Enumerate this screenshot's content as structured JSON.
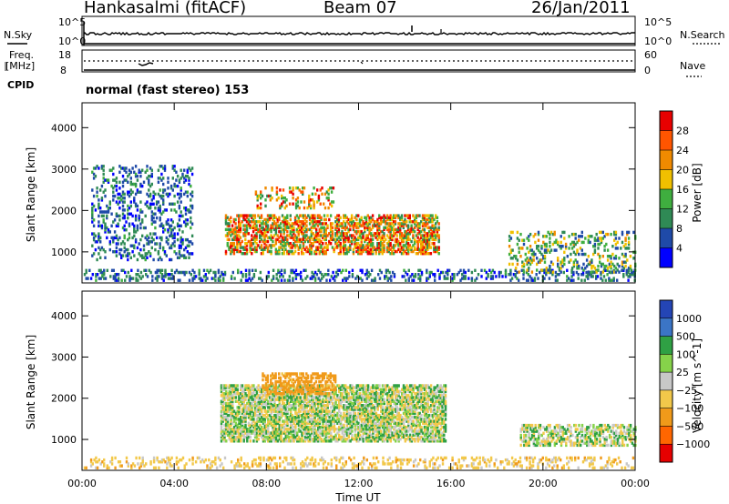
{
  "header": {
    "title": "Hankasalmi (fitACF)",
    "beam": "Beam 07",
    "date": "26/Jan/2011"
  },
  "noise_panel": {
    "left_label": "N.Sky",
    "right_label": "N.Search",
    "ticks_left": [
      "10^5",
      "10^0"
    ],
    "ticks_right": [
      "10^5",
      "10^0"
    ]
  },
  "freq_panel": {
    "left_label_line1": "Freq.",
    "left_label_line2": "[MHz]",
    "ticks_left": [
      "18",
      "8"
    ],
    "right_label": "Nave",
    "ticks_right": [
      "60",
      "0"
    ]
  },
  "cpid_label": "CPID",
  "cpid_text": "normal (fast stereo) 153",
  "colors": {
    "power_scale": [
      "#0000ff",
      "#1f4aa8",
      "#2f8a55",
      "#3fae3f",
      "#f0c000",
      "#f08a00",
      "#ff5500",
      "#e80000"
    ],
    "velocity_scale": [
      "#2445b5",
      "#3b75c6",
      "#2fa044",
      "#86d24a",
      "#c8c8c8",
      "#f2c84a",
      "#f09a1a",
      "#ff6600",
      "#e60000"
    ],
    "ground_scatter": "#c8c8c8"
  },
  "chart_data": [
    {
      "type": "heatmap",
      "title": "",
      "quantity": "Power",
      "xlabel": "",
      "ylabel": "Slant Range [km]",
      "xlim": [
        0,
        24
      ],
      "ylim": [
        250,
        4600
      ],
      "yticks": [
        "1000",
        "2000",
        "3000",
        "4000"
      ],
      "xticks": [
        "00:00",
        "04:00",
        "08:00",
        "12:00",
        "16:00",
        "20:00",
        "00:00"
      ],
      "colorbar": {
        "label": "Power [dB]",
        "ticks": [
          "4",
          "8",
          "12",
          "16",
          "20",
          "24",
          "28"
        ],
        "range": [
          0,
          30
        ]
      },
      "regions": [
        {
          "name": "near-range",
          "t_start": 0.0,
          "t_end": 24.0,
          "r_min": 300,
          "r_max": 550,
          "power_db": [
            2,
            12
          ]
        },
        {
          "name": "early-scatter",
          "t_start": 0.4,
          "t_end": 4.8,
          "r_min": 800,
          "r_max": 3100,
          "power_db": [
            2,
            12
          ]
        },
        {
          "name": "band-upper",
          "t_start": 7.5,
          "t_end": 11.0,
          "r_min": 2050,
          "r_max": 2550,
          "power_db": [
            10,
            28
          ]
        },
        {
          "name": "band-lower",
          "t_start": 6.2,
          "t_end": 15.5,
          "r_min": 950,
          "r_max": 1900,
          "power_db": [
            8,
            30
          ]
        },
        {
          "name": "evening-scatter",
          "t_start": 18.5,
          "t_end": 24.0,
          "r_min": 500,
          "r_max": 1500,
          "power_db": [
            4,
            20
          ]
        }
      ]
    },
    {
      "type": "heatmap",
      "title": "",
      "quantity": "Velocity",
      "xlabel": "Time UT",
      "ylabel": "Slant Range [km]",
      "xlim": [
        0,
        24
      ],
      "ylim": [
        250,
        4600
      ],
      "yticks": [
        "1000",
        "2000",
        "3000",
        "4000"
      ],
      "xticks": [
        "00:00",
        "04:00",
        "08:00",
        "12:00",
        "16:00",
        "20:00",
        "00:00"
      ],
      "colorbar": {
        "label": "Velocity [m s^-1]",
        "ticks": [
          "1000",
          "500",
          "100",
          "25",
          "−25",
          "−100",
          "−500",
          "−1000"
        ]
      },
      "regions": [
        {
          "name": "ground-scatter-main",
          "t_start": 6.0,
          "t_end": 15.8,
          "r_min": 950,
          "r_max": 2300,
          "velocity": 0
        },
        {
          "name": "ionospheric-band",
          "t_start": 7.8,
          "t_end": 11.0,
          "r_min": 2100,
          "r_max": 2600,
          "velocity": -150
        },
        {
          "name": "evening-ground",
          "t_start": 19.0,
          "t_end": 24.0,
          "r_min": 850,
          "r_max": 1350,
          "velocity": 0
        },
        {
          "name": "near-range",
          "t_start": 0.0,
          "t_end": 24.0,
          "r_min": 300,
          "r_max": 550,
          "velocity": -60
        }
      ]
    }
  ]
}
